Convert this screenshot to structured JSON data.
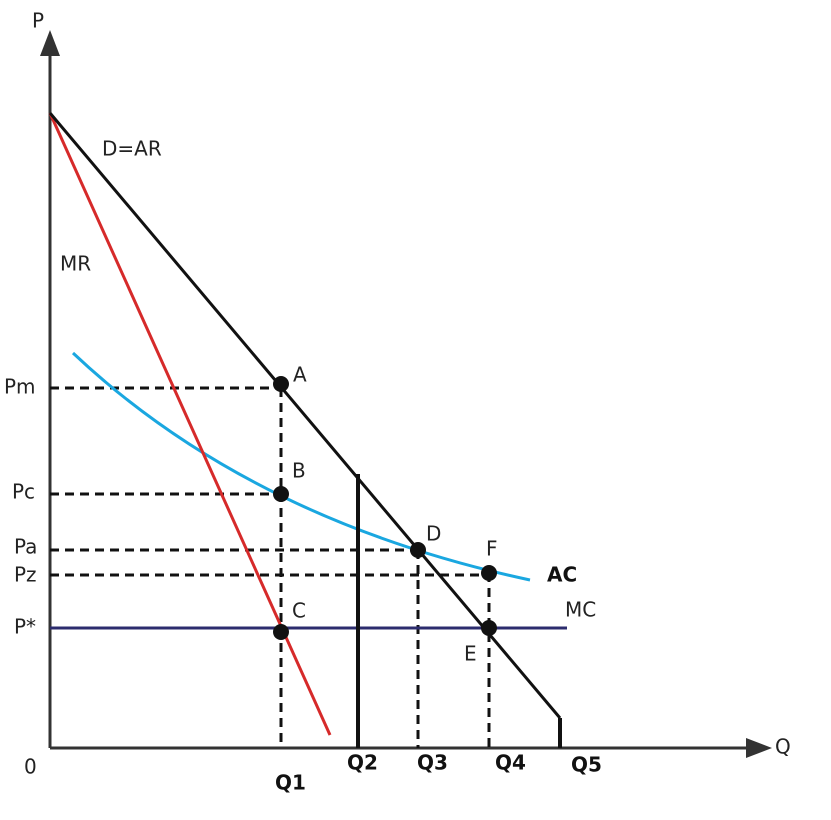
{
  "axes": {
    "y_label": "P",
    "x_label": "Q",
    "origin": "0"
  },
  "curves": {
    "demand": "D=AR",
    "marginal_revenue": "MR",
    "average_cost": "AC",
    "marginal_cost": "MC"
  },
  "price_levels": [
    "Pm",
    "Pc",
    "Pa",
    "Pz",
    "P*"
  ],
  "points": [
    "A",
    "B",
    "C",
    "D",
    "E",
    "F"
  ],
  "quantities": [
    "Q1",
    "Q2",
    "Q3",
    "Q4",
    "Q5"
  ]
}
